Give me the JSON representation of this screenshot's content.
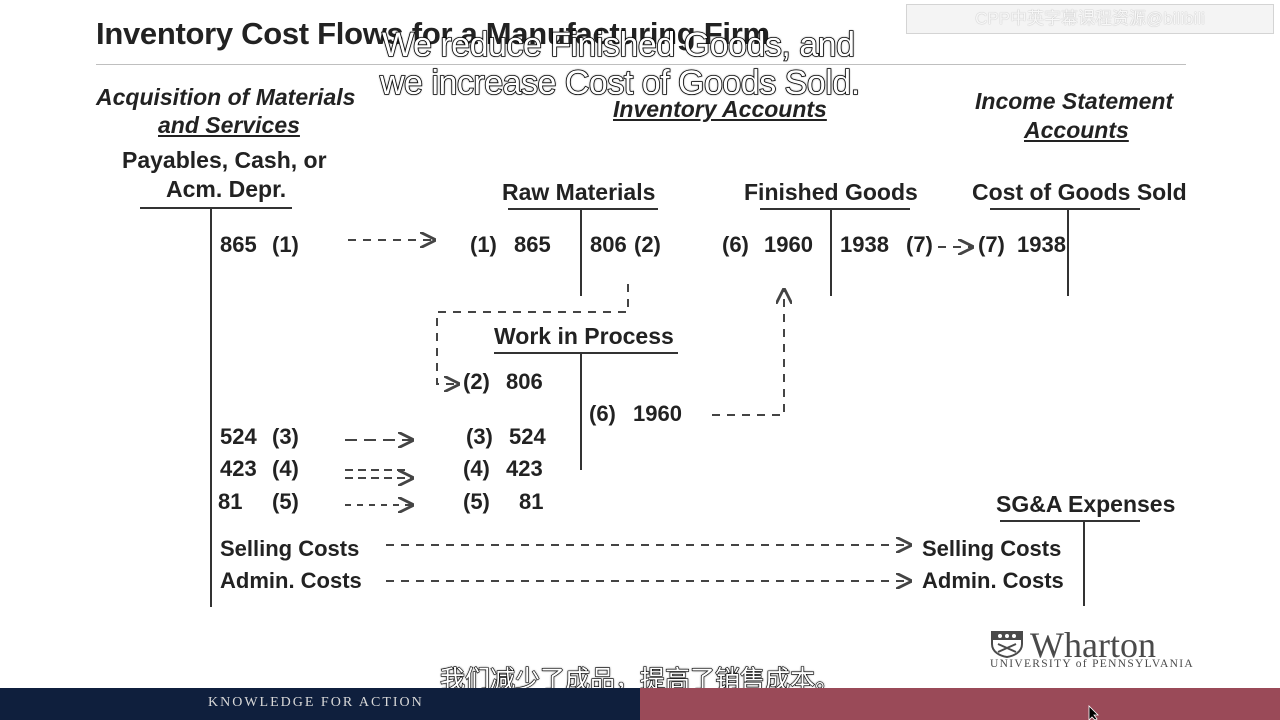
{
  "slide": {
    "title": "Inventory Cost Flows for a Manufacturing Firm",
    "overlay_caption_line1": "We reduce Finished Goods, and",
    "overlay_caption_line2": "we increase Cost of Goods Sold.",
    "watermark": "CPP中英字幕课程资源@bilibili",
    "subtitle_cn": "我们减少了成品，提高了销售成本。"
  },
  "sections": {
    "acquisition_line1": "Acquisition of Materials",
    "acquisition_line2": "and Services",
    "inventory": "Inventory Accounts",
    "income_line1": "Income Statement",
    "income_line2": "Accounts"
  },
  "accounts": {
    "payables": {
      "title_line1": "Payables, Cash, or",
      "title_line2": "Acm. Depr.",
      "entries": [
        {
          "amount": "865",
          "ref": "(1)"
        },
        {
          "amount": "524",
          "ref": "(3)"
        },
        {
          "amount": "423",
          "ref": "(4)"
        },
        {
          "amount": "81",
          "ref": "(5)"
        }
      ],
      "selling": "Selling Costs",
      "admin": "Admin. Costs"
    },
    "raw_materials": {
      "title": "Raw Materials",
      "debit": {
        "ref": "(1)",
        "amount": "865"
      },
      "credit": {
        "amount": "806",
        "ref": "(2)"
      }
    },
    "work_in_process": {
      "title": "Work in Process",
      "debits": [
        {
          "ref": "(2)",
          "amount": "806"
        },
        {
          "ref": "(3)",
          "amount": "524"
        },
        {
          "ref": "(4)",
          "amount": "423"
        },
        {
          "ref": "(5)",
          "amount": "81"
        }
      ],
      "credit": {
        "ref": "(6)",
        "amount": "1960"
      }
    },
    "finished_goods": {
      "title": "Finished Goods",
      "debit": {
        "ref": "(6)",
        "amount": "1960"
      },
      "credit": {
        "amount": "1938",
        "ref": "(7)"
      }
    },
    "cogs": {
      "title": "Cost of Goods Sold",
      "debit": {
        "ref": "(7)",
        "amount": "1938"
      }
    },
    "sga": {
      "title": "SG&A Expenses",
      "selling": "Selling Costs",
      "admin": "Admin. Costs"
    }
  },
  "branding": {
    "logo_name": "Wharton",
    "logo_sub": "UNIVERSITY of PENNSYLVANIA",
    "footer_tagline": "KNOWLEDGE FOR ACTION"
  },
  "colors": {
    "footer_left": "#0f1f3d",
    "footer_right": "#9a4a58"
  }
}
